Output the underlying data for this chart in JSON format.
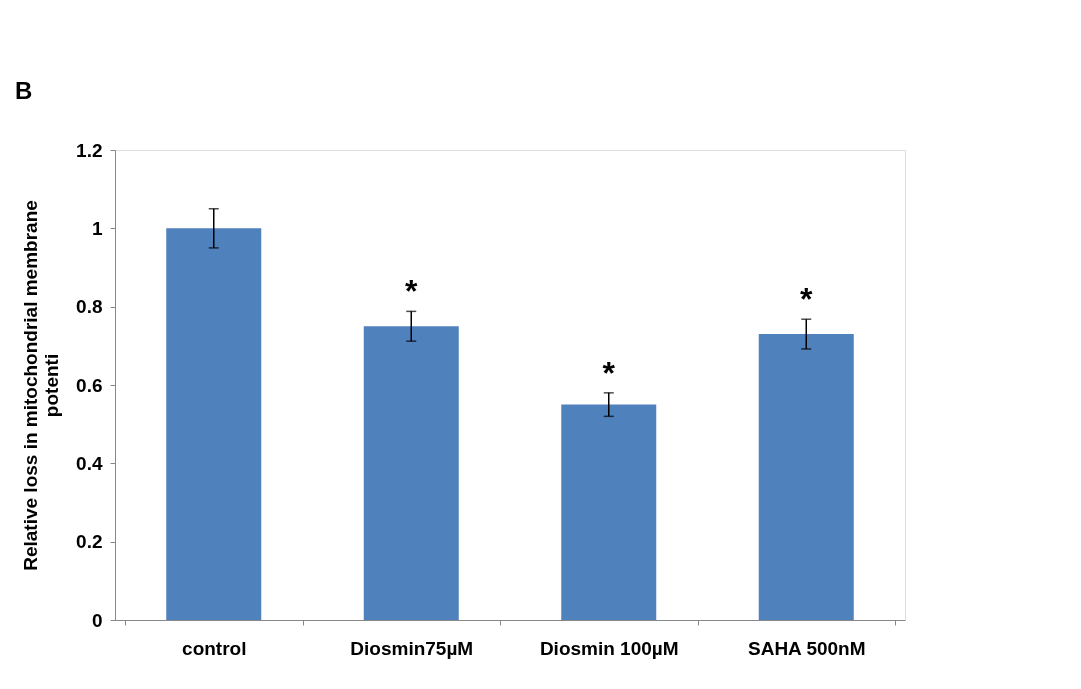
{
  "chart_data": {
    "type": "bar",
    "ylabel": "Relative loss in mitochondrial membrane potenti",
    "categories": [
      "control",
      "Diosmin75µM",
      "Diosmin 100µM",
      "SAHA 500nM"
    ],
    "values": [
      1.0,
      0.75,
      0.55,
      0.73
    ],
    "errors": [
      0.05,
      0.038,
      0.03,
      0.038
    ],
    "color": "#4f81bd",
    "ylim": [
      0,
      1.2
    ],
    "yticks": [
      0,
      0.2,
      0.4,
      0.6,
      0.8,
      1,
      1.2
    ],
    "grid": false,
    "annotations": [
      "B",
      "*",
      "*",
      "*"
    ]
  }
}
